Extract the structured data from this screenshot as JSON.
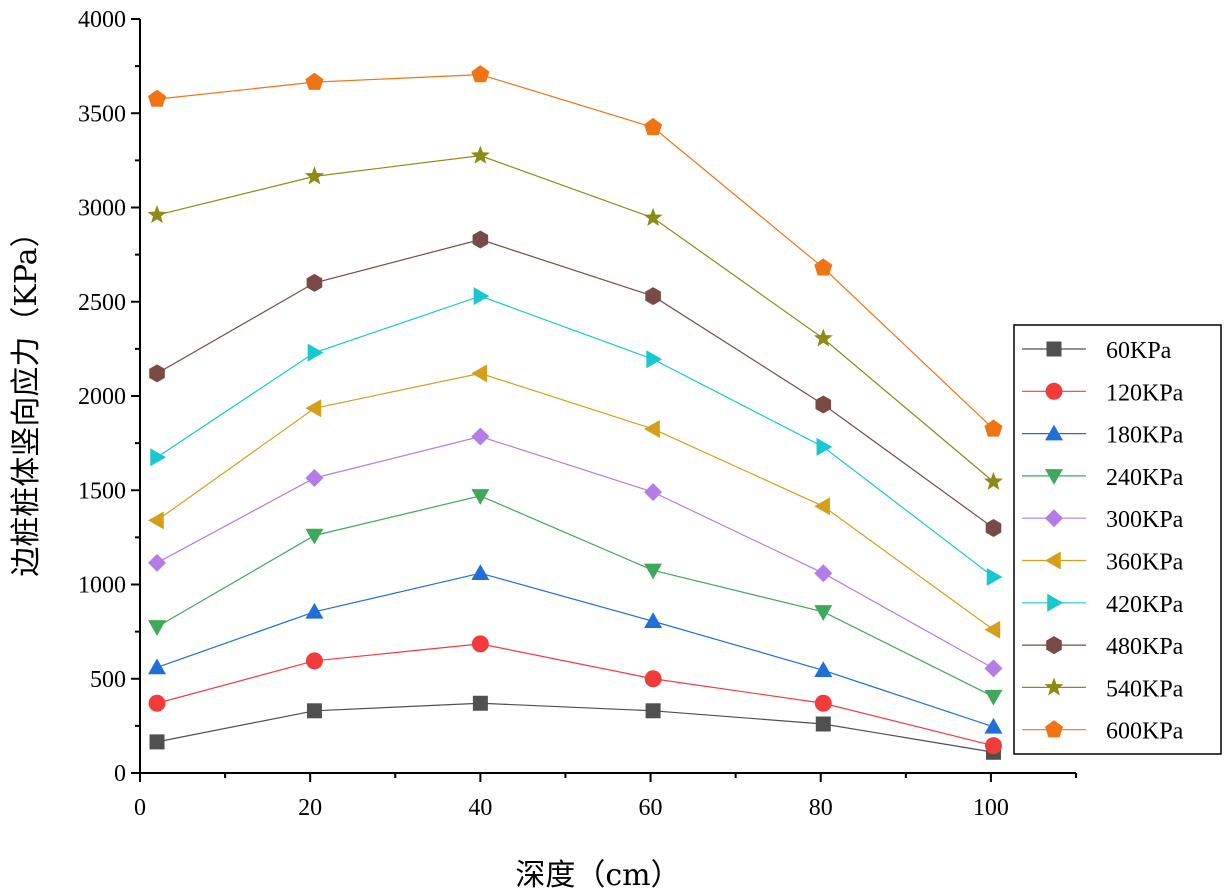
{
  "chart_data": {
    "type": "line",
    "xlabel": "深度（cm）",
    "ylabel": "边桩桩体竖向应力（KPa）",
    "xlim": [
      0,
      110
    ],
    "ylim": [
      0,
      4000
    ],
    "xticks": [
      0,
      20,
      40,
      60,
      80,
      100
    ],
    "yticks": [
      0,
      500,
      1000,
      1500,
      2000,
      2500,
      3000,
      3500,
      4000
    ],
    "x": [
      2,
      20.5,
      40,
      60.3,
      80.3,
      100.3
    ],
    "legend_position": "right",
    "series": [
      {
        "name": "60KPa",
        "marker": "square",
        "color": "#505050",
        "values": [
          165,
          330,
          370,
          330,
          260,
          110
        ]
      },
      {
        "name": "120KPa",
        "marker": "circle",
        "color": "#f23b3b",
        "values": [
          370,
          595,
          685,
          500,
          370,
          145
        ]
      },
      {
        "name": "180KPa",
        "marker": "triangle-up",
        "color": "#1f6fd9",
        "values": [
          560,
          855,
          1060,
          805,
          545,
          245
        ]
      },
      {
        "name": "240KPa",
        "marker": "triangle-down",
        "color": "#3fa85a",
        "values": [
          775,
          1260,
          1470,
          1075,
          855,
          405
        ]
      },
      {
        "name": "300KPa",
        "marker": "diamond",
        "color": "#b57be6",
        "values": [
          1115,
          1565,
          1785,
          1490,
          1060,
          555
        ]
      },
      {
        "name": "360KPa",
        "marker": "triangle-left",
        "color": "#d4a017",
        "values": [
          1340,
          1935,
          2120,
          1825,
          1415,
          760
        ]
      },
      {
        "name": "420KPa",
        "marker": "triangle-right",
        "color": "#17c8d0",
        "values": [
          1675,
          2230,
          2530,
          2195,
          1730,
          1040
        ]
      },
      {
        "name": "480KPa",
        "marker": "hexagon",
        "color": "#7a4a46",
        "values": [
          2120,
          2600,
          2830,
          2530,
          1955,
          1300
        ]
      },
      {
        "name": "540KPa",
        "marker": "star",
        "color": "#8b8b16",
        "values": [
          2960,
          3165,
          3275,
          2945,
          2305,
          1545
        ]
      },
      {
        "name": "600KPa",
        "marker": "pentagon",
        "color": "#f07414",
        "values": [
          3575,
          3665,
          3705,
          3425,
          2680,
          1825
        ]
      }
    ]
  }
}
